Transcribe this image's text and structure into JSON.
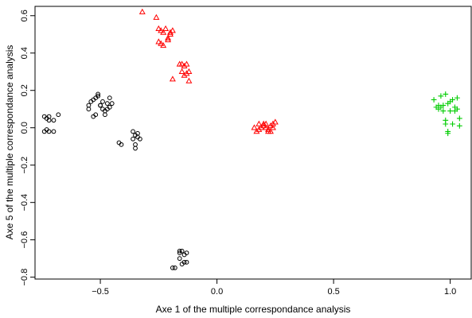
{
  "chart_data": {
    "type": "scatter",
    "title": "",
    "xlabel": "Axe 1 of the multiple correspondance analysis",
    "ylabel": "Axe 5 of the multiple correspondance analysis",
    "xlim": [
      -0.78,
      1.09
    ],
    "ylim": [
      -0.81,
      0.65
    ],
    "xticks": [
      -0.5,
      0.0,
      0.5,
      1.0
    ],
    "xtick_labels": [
      "−0.5",
      "0.0",
      "0.5",
      "1.0"
    ],
    "yticks": [
      -0.8,
      -0.6,
      -0.4,
      -0.2,
      0.0,
      0.2,
      0.4,
      0.6
    ],
    "ytick_labels": [
      "−0.8",
      "−0.6",
      "−0.4",
      "−0.2",
      "0.0",
      "0.2",
      "0.4",
      "0.6"
    ],
    "grid": false,
    "legend": "none",
    "series": [
      {
        "marker": "circle",
        "color": "#000000",
        "x": [
          -0.74,
          -0.73,
          -0.72,
          -0.7,
          -0.68,
          -0.73,
          -0.72,
          -0.7,
          -0.74,
          -0.72,
          -0.55,
          -0.54,
          -0.53,
          -0.52,
          -0.51,
          -0.5,
          -0.49,
          -0.48,
          -0.47,
          -0.46,
          -0.45,
          -0.52,
          -0.5,
          -0.48,
          -0.53,
          -0.55,
          -0.47,
          -0.51,
          -0.49,
          -0.46,
          -0.42,
          -0.41,
          -0.36,
          -0.35,
          -0.34,
          -0.33,
          -0.35,
          -0.36,
          -0.34,
          -0.35,
          -0.19,
          -0.18,
          -0.16,
          -0.15,
          -0.14,
          -0.13,
          -0.16,
          -0.15,
          -0.14,
          -0.13,
          -0.16
        ],
        "y": [
          0.06,
          0.05,
          0.04,
          0.04,
          0.07,
          -0.01,
          -0.02,
          -0.02,
          -0.02,
          0.06,
          0.1,
          0.14,
          0.15,
          0.16,
          0.18,
          0.12,
          0.1,
          0.07,
          0.13,
          0.16,
          0.13,
          0.07,
          0.12,
          0.09,
          0.06,
          0.12,
          0.1,
          0.17,
          0.14,
          0.11,
          -0.08,
          -0.09,
          -0.02,
          -0.04,
          -0.05,
          -0.06,
          -0.09,
          -0.06,
          -0.03,
          -0.11,
          -0.75,
          -0.75,
          -0.66,
          -0.66,
          -0.68,
          -0.67,
          -0.7,
          -0.73,
          -0.72,
          -0.72,
          -0.67
        ]
      },
      {
        "marker": "triangle",
        "color": "#ff0000",
        "x": [
          -0.32,
          -0.26,
          -0.25,
          -0.24,
          -0.23,
          -0.22,
          -0.21,
          -0.2,
          -0.19,
          -0.25,
          -0.24,
          -0.23,
          -0.21,
          -0.2,
          -0.19,
          -0.16,
          -0.15,
          -0.14,
          -0.13,
          -0.12,
          -0.15,
          -0.14,
          -0.13,
          -0.12,
          0.16,
          0.17,
          0.18,
          0.19,
          0.2,
          0.21,
          0.22,
          0.23,
          0.24,
          0.25,
          0.18,
          0.2,
          0.22,
          0.24,
          0.21,
          0.23
        ],
        "y": [
          0.62,
          0.59,
          0.53,
          0.52,
          0.51,
          0.53,
          0.48,
          0.5,
          0.52,
          0.46,
          0.45,
          0.44,
          0.47,
          0.51,
          0.26,
          0.34,
          0.34,
          0.33,
          0.29,
          0.25,
          0.3,
          0.28,
          0.34,
          0.3,
          0.0,
          -0.02,
          0.02,
          0.0,
          0.02,
          0.0,
          -0.01,
          0.01,
          0.02,
          0.03,
          -0.01,
          0.01,
          -0.02,
          0.0,
          0.02,
          -0.02
        ]
      },
      {
        "marker": "plus",
        "color": "#00cc00",
        "x": [
          0.93,
          0.94,
          0.95,
          0.96,
          0.97,
          0.98,
          0.99,
          1.0,
          1.01,
          1.02,
          1.03,
          1.04,
          0.95,
          0.96,
          0.97,
          0.98,
          0.99,
          1.0,
          1.01,
          1.02,
          1.03,
          1.04,
          0.98,
          0.99
        ],
        "y": [
          0.15,
          0.11,
          0.12,
          0.17,
          0.12,
          0.18,
          0.13,
          0.14,
          0.15,
          0.11,
          0.16,
          0.05,
          0.1,
          0.11,
          0.09,
          0.04,
          -0.03,
          0.09,
          0.02,
          0.09,
          0.1,
          0.01,
          0.02,
          -0.02
        ]
      }
    ]
  }
}
